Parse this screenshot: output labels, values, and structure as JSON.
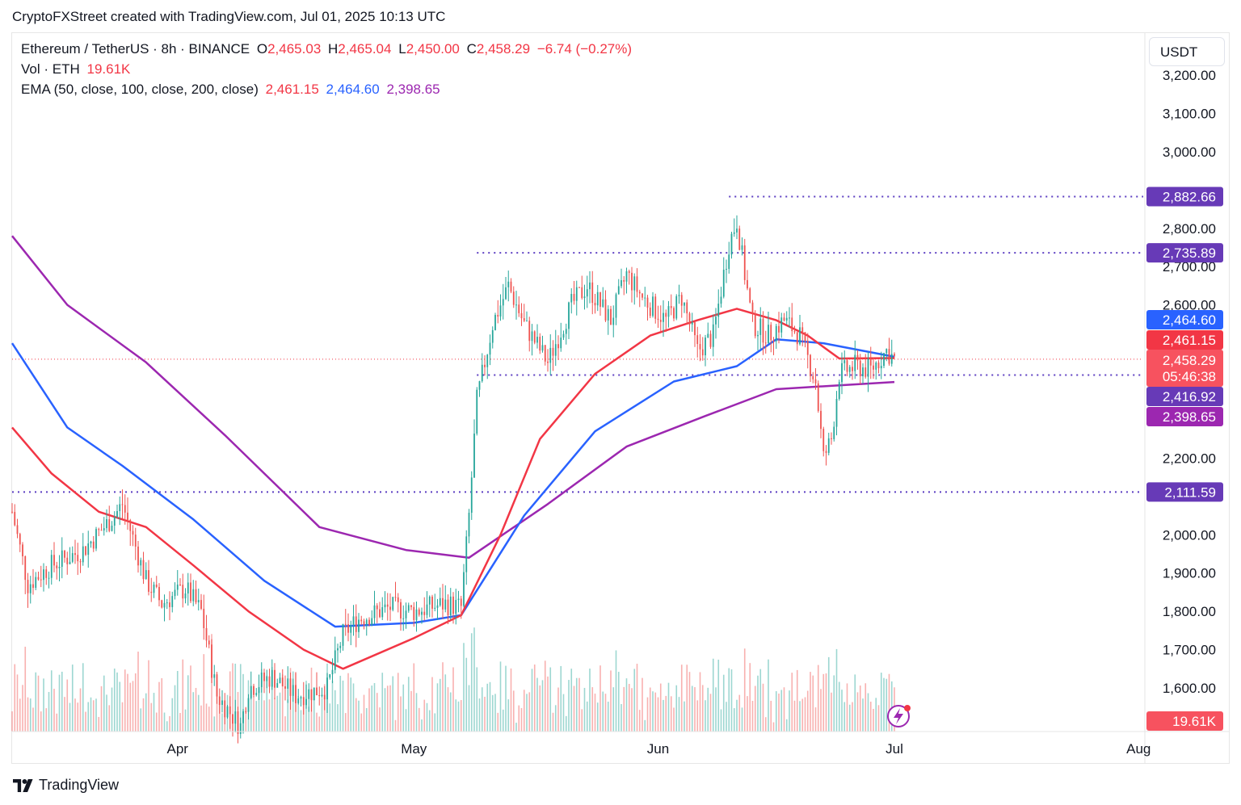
{
  "caption": "CryptoFXStreet created with TradingView.com, Jul 01, 2025 10:13 UTC",
  "footer_brand": "TradingView",
  "currency_button": "USDT",
  "legend": {
    "symbol": "Ethereum / TetherUS · 8h · BINANCE",
    "o_label": "O",
    "o_value": "2,465.03",
    "h_label": "H",
    "h_value": "2,465.04",
    "l_label": "L",
    "l_value": "2,450.00",
    "c_label": "C",
    "c_value": "2,458.29",
    "change": "−6.74 (−0.27%)",
    "vol_label": "Vol · ETH",
    "vol_value": "19.61K",
    "ema_label": "EMA (50, close, 100, close, 200, close)",
    "ema50": "2,461.15",
    "ema100": "2,464.60",
    "ema200": "2,398.65"
  },
  "colors": {
    "up": "#26a69a",
    "down": "#ef5350",
    "ema50": "#f23645",
    "ema100": "#2962ff",
    "ema200": "#9c27b0",
    "level": "#5c3ec2",
    "level_box": "#673ab7",
    "price_line": "#f23645"
  },
  "chart_data": {
    "type": "candlestick",
    "symbol": "Ethereum / TetherUS",
    "interval": "8h",
    "exchange": "BINANCE",
    "y_ticks": [
      1600,
      1700,
      1800,
      1900,
      2000,
      2200,
      2600,
      2700,
      2800,
      3000,
      3100,
      3200
    ],
    "y_tick_labels": [
      "1,600.00",
      "1,700.00",
      "1,800.00",
      "1,900.00",
      "2,000.00",
      "2,200.00",
      "2,600.00",
      "2,700.00",
      "2,800.00",
      "3,000.00",
      "3,100.00",
      "3,200.00"
    ],
    "x_ticks": [
      {
        "label": "Apr",
        "date": "2025-04-01"
      },
      {
        "label": "May",
        "date": "2025-05-01"
      },
      {
        "label": "Jun",
        "date": "2025-06-01"
      },
      {
        "label": "Jul",
        "date": "2025-07-01"
      },
      {
        "label": "Aug",
        "date": "2025-08-01"
      }
    ],
    "horizontal_levels": [
      {
        "value": 2882.66,
        "label": "2,882.66",
        "from": "2025-06-10"
      },
      {
        "value": 2735.89,
        "label": "2,735.89",
        "from": "2025-05-09"
      },
      {
        "value": 2416.92,
        "label": "2,416.92",
        "from": "2025-05-09"
      },
      {
        "value": 2111.59,
        "label": "2,111.59",
        "from": "2025-03-11"
      }
    ],
    "price_tags": [
      {
        "label": "2,464.60",
        "series": "EMA 100"
      },
      {
        "label": "2,461.15",
        "series": "EMA 50"
      },
      {
        "label": "2,458.29",
        "series": "Last price"
      },
      {
        "label": "05:46:38",
        "series": "Countdown"
      },
      {
        "label": "2,416.92",
        "series": "Level"
      },
      {
        "label": "2,398.65",
        "series": "EMA 200"
      },
      {
        "label": "19.61K",
        "series": "Volume"
      }
    ],
    "last_price": 2458.29,
    "close_path": [
      {
        "date": "2025-03-11",
        "close": 2060
      },
      {
        "date": "2025-03-13",
        "close": 1870
      },
      {
        "date": "2025-03-16",
        "close": 1920
      },
      {
        "date": "2025-03-20",
        "close": 1960
      },
      {
        "date": "2025-03-24",
        "close": 2050
      },
      {
        "date": "2025-03-25",
        "close": 2080
      },
      {
        "date": "2025-03-28",
        "close": 1880
      },
      {
        "date": "2025-03-30",
        "close": 1820
      },
      {
        "date": "2025-04-02",
        "close": 1860
      },
      {
        "date": "2025-04-04",
        "close": 1800
      },
      {
        "date": "2025-04-06",
        "close": 1580
      },
      {
        "date": "2025-04-09",
        "close": 1500
      },
      {
        "date": "2025-04-10",
        "close": 1600
      },
      {
        "date": "2025-04-13",
        "close": 1630
      },
      {
        "date": "2025-04-16",
        "close": 1580
      },
      {
        "date": "2025-04-20",
        "close": 1600
      },
      {
        "date": "2025-04-22",
        "close": 1740
      },
      {
        "date": "2025-04-24",
        "close": 1780
      },
      {
        "date": "2025-04-28",
        "close": 1810
      },
      {
        "date": "2025-05-01",
        "close": 1800
      },
      {
        "date": "2025-05-05",
        "close": 1820
      },
      {
        "date": "2025-05-07",
        "close": 1810
      },
      {
        "date": "2025-05-08",
        "close": 2050
      },
      {
        "date": "2025-05-09",
        "close": 2350
      },
      {
        "date": "2025-05-11",
        "close": 2550
      },
      {
        "date": "2025-05-13",
        "close": 2650
      },
      {
        "date": "2025-05-15",
        "close": 2550
      },
      {
        "date": "2025-05-18",
        "close": 2450
      },
      {
        "date": "2025-05-21",
        "close": 2600
      },
      {
        "date": "2025-05-23",
        "close": 2650
      },
      {
        "date": "2025-05-26",
        "close": 2560
      },
      {
        "date": "2025-05-28",
        "close": 2680
      },
      {
        "date": "2025-05-30",
        "close": 2620
      },
      {
        "date": "2025-06-02",
        "close": 2560
      },
      {
        "date": "2025-06-04",
        "close": 2620
      },
      {
        "date": "2025-06-06",
        "close": 2480
      },
      {
        "date": "2025-06-08",
        "close": 2520
      },
      {
        "date": "2025-06-10",
        "close": 2760
      },
      {
        "date": "2025-06-11",
        "close": 2820
      },
      {
        "date": "2025-06-12",
        "close": 2680
      },
      {
        "date": "2025-06-13",
        "close": 2550
      },
      {
        "date": "2025-06-15",
        "close": 2520
      },
      {
        "date": "2025-06-17",
        "close": 2560
      },
      {
        "date": "2025-06-19",
        "close": 2520
      },
      {
        "date": "2025-06-21",
        "close": 2400
      },
      {
        "date": "2025-06-22",
        "close": 2200
      },
      {
        "date": "2025-06-23",
        "close": 2250
      },
      {
        "date": "2025-06-24",
        "close": 2420
      },
      {
        "date": "2025-06-26",
        "close": 2440
      },
      {
        "date": "2025-06-28",
        "close": 2430
      },
      {
        "date": "2025-06-30",
        "close": 2480
      },
      {
        "date": "2025-07-01",
        "close": 2458.29
      }
    ],
    "ema50_path": [
      {
        "date": "2025-03-11",
        "close": 2280
      },
      {
        "date": "2025-03-16",
        "close": 2160
      },
      {
        "date": "2025-03-22",
        "close": 2060
      },
      {
        "date": "2025-03-28",
        "close": 2020
      },
      {
        "date": "2025-04-03",
        "close": 1920
      },
      {
        "date": "2025-04-10",
        "close": 1800
      },
      {
        "date": "2025-04-17",
        "close": 1700
      },
      {
        "date": "2025-04-22",
        "close": 1650
      },
      {
        "date": "2025-05-01",
        "close": 1730
      },
      {
        "date": "2025-05-07",
        "close": 1790
      },
      {
        "date": "2025-05-12",
        "close": 2000
      },
      {
        "date": "2025-05-17",
        "close": 2250
      },
      {
        "date": "2025-05-24",
        "close": 2420
      },
      {
        "date": "2025-05-31",
        "close": 2520
      },
      {
        "date": "2025-06-06",
        "close": 2560
      },
      {
        "date": "2025-06-11",
        "close": 2590
      },
      {
        "date": "2025-06-16",
        "close": 2560
      },
      {
        "date": "2025-06-20",
        "close": 2520
      },
      {
        "date": "2025-06-24",
        "close": 2460
      },
      {
        "date": "2025-07-01",
        "close": 2461.15
      }
    ],
    "ema100_path": [
      {
        "date": "2025-03-11",
        "close": 2500
      },
      {
        "date": "2025-03-18",
        "close": 2280
      },
      {
        "date": "2025-03-25",
        "close": 2180
      },
      {
        "date": "2025-04-03",
        "close": 2040
      },
      {
        "date": "2025-04-12",
        "close": 1880
      },
      {
        "date": "2025-04-21",
        "close": 1760
      },
      {
        "date": "2025-05-01",
        "close": 1770
      },
      {
        "date": "2025-05-07",
        "close": 1790
      },
      {
        "date": "2025-05-15",
        "close": 2050
      },
      {
        "date": "2025-05-24",
        "close": 2270
      },
      {
        "date": "2025-06-03",
        "close": 2400
      },
      {
        "date": "2025-06-11",
        "close": 2440
      },
      {
        "date": "2025-06-16",
        "close": 2510
      },
      {
        "date": "2025-06-22",
        "close": 2500
      },
      {
        "date": "2025-07-01",
        "close": 2464.6
      }
    ],
    "ema200_path": [
      {
        "date": "2025-03-11",
        "close": 2780
      },
      {
        "date": "2025-03-18",
        "close": 2600
      },
      {
        "date": "2025-03-28",
        "close": 2450
      },
      {
        "date": "2025-04-07",
        "close": 2260
      },
      {
        "date": "2025-04-19",
        "close": 2020
      },
      {
        "date": "2025-04-30",
        "close": 1960
      },
      {
        "date": "2025-05-08",
        "close": 1940
      },
      {
        "date": "2025-05-18",
        "close": 2080
      },
      {
        "date": "2025-05-28",
        "close": 2230
      },
      {
        "date": "2025-06-07",
        "close": 2310
      },
      {
        "date": "2025-06-16",
        "close": 2380
      },
      {
        "date": "2025-06-24",
        "close": 2390
      },
      {
        "date": "2025-07-01",
        "close": 2398.65
      }
    ],
    "volume_last": "19.61K"
  }
}
